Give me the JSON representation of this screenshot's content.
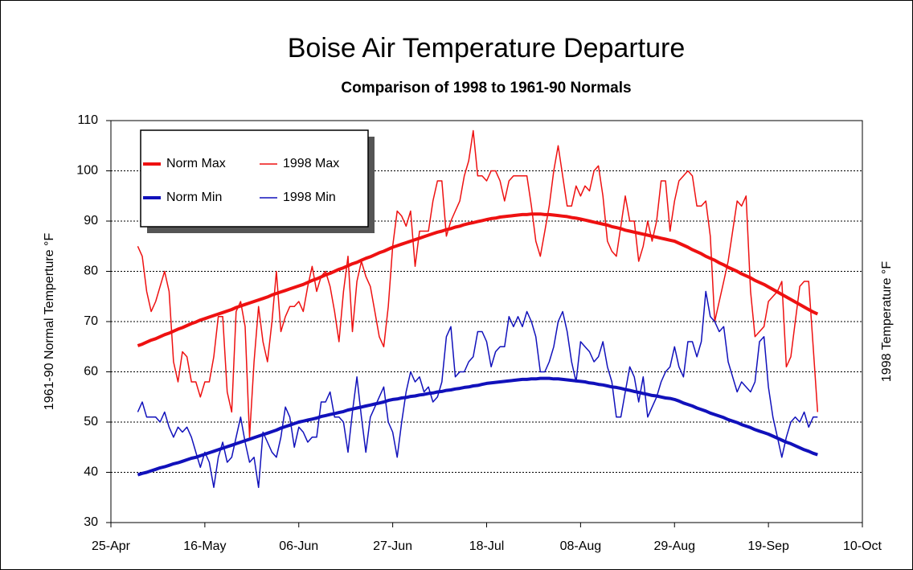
{
  "chart_data": {
    "type": "line",
    "title": "Boise Air Temperature Departure",
    "subtitle": "Comparison of 1998 to 1961-90 Normals",
    "ylabel": "1961-90 Normal Temperture °F",
    "y2label": "1998 Temperature °F",
    "xlim": [
      "25-Apr",
      "10-Oct"
    ],
    "xticks": [
      "25-Apr",
      "16-May",
      "06-Jun",
      "27-Jun",
      "18-Jul",
      "08-Aug",
      "29-Aug",
      "19-Sep",
      "10-Oct"
    ],
    "ylim": [
      30,
      110
    ],
    "yticks": [
      30,
      40,
      50,
      60,
      70,
      80,
      90,
      100,
      110
    ],
    "grid": true,
    "legend": "upper left",
    "x": [
      "01-May",
      "02-May",
      "03-May",
      "04-May",
      "05-May",
      "06-May",
      "07-May",
      "08-May",
      "09-May",
      "10-May",
      "11-May",
      "12-May",
      "13-May",
      "14-May",
      "15-May",
      "16-May",
      "17-May",
      "18-May",
      "19-May",
      "20-May",
      "21-May",
      "22-May",
      "23-May",
      "24-May",
      "25-May",
      "26-May",
      "27-May",
      "28-May",
      "29-May",
      "30-May",
      "31-May",
      "01-Jun",
      "02-Jun",
      "03-Jun",
      "04-Jun",
      "05-Jun",
      "06-Jun",
      "07-Jun",
      "08-Jun",
      "09-Jun",
      "10-Jun",
      "11-Jun",
      "12-Jun",
      "13-Jun",
      "14-Jun",
      "15-Jun",
      "16-Jun",
      "17-Jun",
      "18-Jun",
      "19-Jun",
      "20-Jun",
      "21-Jun",
      "22-Jun",
      "23-Jun",
      "24-Jun",
      "25-Jun",
      "26-Jun",
      "27-Jun",
      "28-Jun",
      "29-Jun",
      "30-Jun",
      "01-Jul",
      "02-Jul",
      "03-Jul",
      "04-Jul",
      "05-Jul",
      "06-Jul",
      "07-Jul",
      "08-Jul",
      "09-Jul",
      "10-Jul",
      "11-Jul",
      "12-Jul",
      "13-Jul",
      "14-Jul",
      "15-Jul",
      "16-Jul",
      "17-Jul",
      "18-Jul",
      "19-Jul",
      "20-Jul",
      "21-Jul",
      "22-Jul",
      "23-Jul",
      "24-Jul",
      "25-Jul",
      "26-Jul",
      "27-Jul",
      "28-Jul",
      "29-Jul",
      "30-Jul",
      "31-Jul",
      "01-Aug",
      "02-Aug",
      "03-Aug",
      "04-Aug",
      "05-Aug",
      "06-Aug",
      "07-Aug",
      "08-Aug",
      "09-Aug",
      "10-Aug",
      "11-Aug",
      "12-Aug",
      "13-Aug",
      "14-Aug",
      "15-Aug",
      "16-Aug",
      "17-Aug",
      "18-Aug",
      "19-Aug",
      "20-Aug",
      "21-Aug",
      "22-Aug",
      "23-Aug",
      "24-Aug",
      "25-Aug",
      "26-Aug",
      "27-Aug",
      "28-Aug",
      "29-Aug",
      "30-Aug",
      "31-Aug",
      "01-Sep",
      "02-Sep",
      "03-Sep",
      "04-Sep",
      "05-Sep",
      "06-Sep",
      "07-Sep",
      "08-Sep",
      "09-Sep",
      "10-Sep",
      "11-Sep",
      "12-Sep",
      "13-Sep",
      "14-Sep",
      "15-Sep",
      "16-Sep",
      "17-Sep",
      "18-Sep",
      "19-Sep",
      "20-Sep",
      "21-Sep",
      "22-Sep",
      "23-Sep",
      "24-Sep",
      "25-Sep",
      "26-Sep",
      "27-Sep",
      "28-Sep",
      "29-Sep",
      "30-Sep"
    ],
    "series": [
      {
        "name": "Norm Max",
        "color": "#ee1111",
        "width": 4,
        "values": [
          65.2,
          65.5,
          65.9,
          66.3,
          66.6,
          67.0,
          67.4,
          67.7,
          68.1,
          68.5,
          68.8,
          69.2,
          69.6,
          69.9,
          70.3,
          70.6,
          70.9,
          71.2,
          71.5,
          71.8,
          72.1,
          72.4,
          72.8,
          73.1,
          73.4,
          73.7,
          74.0,
          74.3,
          74.6,
          74.9,
          75.3,
          75.6,
          75.9,
          76.2,
          76.5,
          76.8,
          77.1,
          77.4,
          77.8,
          78.2,
          78.5,
          78.9,
          79.3,
          79.6,
          80.0,
          80.4,
          80.7,
          81.1,
          81.5,
          81.8,
          82.2,
          82.6,
          82.9,
          83.3,
          83.7,
          84.0,
          84.4,
          84.8,
          85.1,
          85.4,
          85.7,
          86.0,
          86.3,
          86.6,
          86.9,
          87.2,
          87.5,
          87.8,
          88.0,
          88.3,
          88.5,
          88.8,
          89.0,
          89.3,
          89.5,
          89.7,
          89.9,
          90.1,
          90.3,
          90.5,
          90.6,
          90.8,
          90.9,
          91.0,
          91.1,
          91.2,
          91.3,
          91.3,
          91.4,
          91.4,
          91.4,
          91.3,
          91.3,
          91.2,
          91.1,
          91.0,
          90.9,
          90.7,
          90.6,
          90.4,
          90.2,
          90.0,
          89.8,
          89.6,
          89.4,
          89.2,
          88.9,
          88.7,
          88.5,
          88.2,
          88.0,
          87.8,
          87.6,
          87.4,
          87.2,
          87.0,
          86.8,
          86.6,
          86.4,
          86.2,
          86.0,
          85.6,
          85.2,
          84.8,
          84.3,
          83.9,
          83.5,
          83.0,
          82.6,
          82.2,
          81.7,
          81.3,
          80.8,
          80.4,
          80.0,
          79.5,
          79.1,
          78.7,
          78.2,
          77.8,
          77.4,
          76.9,
          76.4,
          75.9,
          75.4,
          74.9,
          74.4,
          73.9,
          73.4,
          72.9,
          72.4,
          71.9,
          71.5
        ]
      },
      {
        "name": "1998 Max",
        "color": "#ee1111",
        "width": 1.5,
        "values": [
          85,
          83,
          76,
          72,
          74,
          77,
          80,
          76,
          62,
          58,
          64,
          63,
          58,
          58,
          55,
          58,
          58,
          63,
          71,
          71,
          56,
          52,
          72,
          74,
          69,
          47,
          62,
          73,
          66,
          62,
          70,
          80,
          68,
          71,
          73,
          73,
          74,
          72,
          77,
          81,
          76,
          79,
          80,
          77,
          72,
          66,
          76,
          83,
          68,
          78,
          82,
          79,
          77,
          72,
          67,
          65,
          73,
          85,
          92,
          91,
          89,
          92,
          81,
          88,
          88,
          88,
          94,
          98,
          98,
          87,
          90,
          92,
          94,
          99,
          102,
          108,
          99,
          99,
          98,
          100,
          100,
          98,
          94,
          98,
          99,
          99,
          99,
          99,
          93,
          86,
          83,
          88,
          93,
          100,
          105,
          99,
          93,
          93,
          97,
          95,
          97,
          96,
          100,
          101,
          95,
          86,
          84,
          83,
          89,
          95,
          90,
          90,
          82,
          85,
          90,
          86,
          90,
          98,
          98,
          88,
          94,
          98,
          99,
          100,
          99,
          93,
          93,
          94,
          87,
          70,
          74,
          78,
          82,
          88,
          94,
          93,
          95,
          76,
          67,
          68,
          69,
          74,
          75,
          76,
          78,
          61,
          63,
          70,
          77,
          78,
          78,
          65,
          52
        ]
      },
      {
        "name": "Norm Min",
        "color": "#1111bb",
        "width": 4,
        "values": [
          39.5,
          39.8,
          40.0,
          40.3,
          40.6,
          40.9,
          41.1,
          41.4,
          41.7,
          41.9,
          42.2,
          42.5,
          42.8,
          43.0,
          43.3,
          43.6,
          43.9,
          44.2,
          44.5,
          44.8,
          45.1,
          45.4,
          45.7,
          46.0,
          46.3,
          46.6,
          46.9,
          47.2,
          47.5,
          47.8,
          48.1,
          48.4,
          48.8,
          49.1,
          49.4,
          49.7,
          50.0,
          50.2,
          50.4,
          50.6,
          50.8,
          51.1,
          51.3,
          51.5,
          51.7,
          51.9,
          52.1,
          52.4,
          52.6,
          52.8,
          53.0,
          53.2,
          53.4,
          53.6,
          53.8,
          54.0,
          54.3,
          54.5,
          54.6,
          54.8,
          54.9,
          55.1,
          55.2,
          55.4,
          55.5,
          55.7,
          55.8,
          56.0,
          56.1,
          56.3,
          56.4,
          56.6,
          56.7,
          56.9,
          57.0,
          57.2,
          57.3,
          57.5,
          57.7,
          57.8,
          57.9,
          58.0,
          58.1,
          58.2,
          58.3,
          58.4,
          58.5,
          58.5,
          58.6,
          58.6,
          58.7,
          58.7,
          58.7,
          58.6,
          58.6,
          58.5,
          58.4,
          58.3,
          58.2,
          58.1,
          58.0,
          57.8,
          57.7,
          57.5,
          57.4,
          57.2,
          57.0,
          56.9,
          56.7,
          56.5,
          56.3,
          56.1,
          55.9,
          55.7,
          55.5,
          55.3,
          55.2,
          55.0,
          54.8,
          54.7,
          54.5,
          54.2,
          53.8,
          53.5,
          53.2,
          52.8,
          52.5,
          52.2,
          51.8,
          51.5,
          51.2,
          50.9,
          50.5,
          50.2,
          49.9,
          49.5,
          49.2,
          48.9,
          48.5,
          48.2,
          47.9,
          47.6,
          47.2,
          46.8,
          46.4,
          46.0,
          45.7,
          45.3,
          44.9,
          44.5,
          44.2,
          43.8,
          43.5
        ]
      },
      {
        "name": "1998 Min",
        "color": "#1111bb",
        "width": 1.5,
        "values": [
          52,
          54,
          51,
          51,
          51,
          50,
          52,
          49,
          47,
          49,
          48,
          49,
          47,
          44,
          41,
          44,
          42,
          37,
          43,
          46,
          42,
          43,
          47,
          51,
          46,
          42,
          43,
          37,
          48,
          46,
          44,
          43,
          47,
          53,
          51,
          45,
          49,
          48,
          46,
          47,
          47,
          54,
          54,
          56,
          51,
          51,
          50,
          44,
          52,
          59,
          51,
          44,
          51,
          53,
          55,
          57,
          50,
          48,
          43,
          50,
          56,
          60,
          58,
          59,
          56,
          57,
          54,
          55,
          58,
          67,
          69,
          59,
          60,
          60,
          62,
          63,
          68,
          68,
          66,
          61,
          64,
          65,
          65,
          71,
          69,
          71,
          69,
          72,
          70,
          67,
          60,
          60,
          62,
          65,
          70,
          72,
          68,
          62,
          58,
          66,
          65,
          64,
          62,
          63,
          66,
          61,
          58,
          51,
          51,
          56,
          61,
          59,
          54,
          59,
          51,
          53,
          55,
          58,
          60,
          61,
          65,
          61,
          59,
          66,
          66,
          63,
          66,
          76,
          71,
          70,
          68,
          69,
          62,
          59,
          56,
          58,
          57,
          56,
          58,
          66,
          67,
          57,
          51,
          47,
          43,
          47,
          50,
          51,
          50,
          52,
          49,
          51,
          51
        ]
      }
    ]
  }
}
